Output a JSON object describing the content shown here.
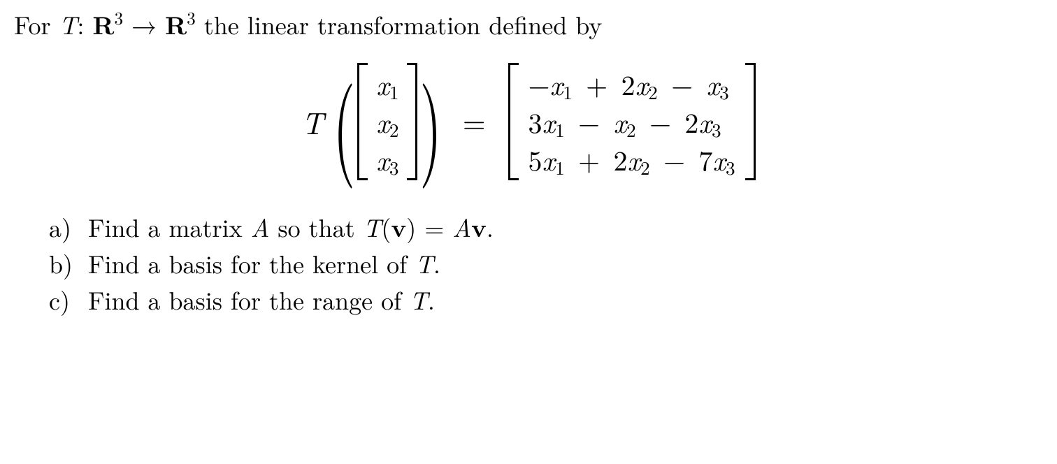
{
  "intro": {
    "for": "For ",
    "T": "T",
    "colon": ": ",
    "R": "R",
    "exp": "3",
    "arrow": " → ",
    "tail": " the linear transformation defined by"
  },
  "equation": {
    "T": "T",
    "input_vars": [
      "x",
      "x",
      "x"
    ],
    "input_subs": [
      "1",
      "2",
      "3"
    ],
    "eq": "=",
    "rows": [
      {
        "t1": "−",
        "v1": "x",
        "s1": "1",
        "op1": " + ",
        "c2": "2",
        "v2": "x",
        "s2": "2",
        "op2": " − ",
        "c3": "",
        "v3": "x",
        "s3": "3"
      },
      {
        "t1": "",
        "c1": "3",
        "v1": "x",
        "s1": "1",
        "op1": " − ",
        "c2": "",
        "v2": "x",
        "s2": "2",
        "op2": " − ",
        "c3": "2",
        "v3": "x",
        "s3": "3"
      },
      {
        "t1": "",
        "c1": "5",
        "v1": "x",
        "s1": "1",
        "op1": " + ",
        "c2": "2",
        "v2": "x",
        "s2": "2",
        "op2": " − ",
        "c3": "7",
        "v3": "x",
        "s3": "3"
      }
    ]
  },
  "parts": {
    "a": {
      "label": "a)",
      "pre": "Find a matrix ",
      "A": "A",
      "mid": " so that ",
      "T": "T",
      "lp": "(",
      "v": "v",
      "rp": ") = ",
      "A2": "A",
      "v2": "v",
      "dot": "."
    },
    "b": {
      "label": "b)",
      "pre": "Find a basis for the kernel of ",
      "T": "T",
      "dot": "."
    },
    "c": {
      "label": "c)",
      "pre": "Find a basis for the range of ",
      "T": "T",
      "dot": "."
    }
  },
  "style": {
    "text_color": "#000000",
    "background": "#ffffff",
    "base_fontsize_pt": 27,
    "display_fontsize_pt": 30,
    "font_family": "Computer Modern / Latin Modern (serif)"
  }
}
